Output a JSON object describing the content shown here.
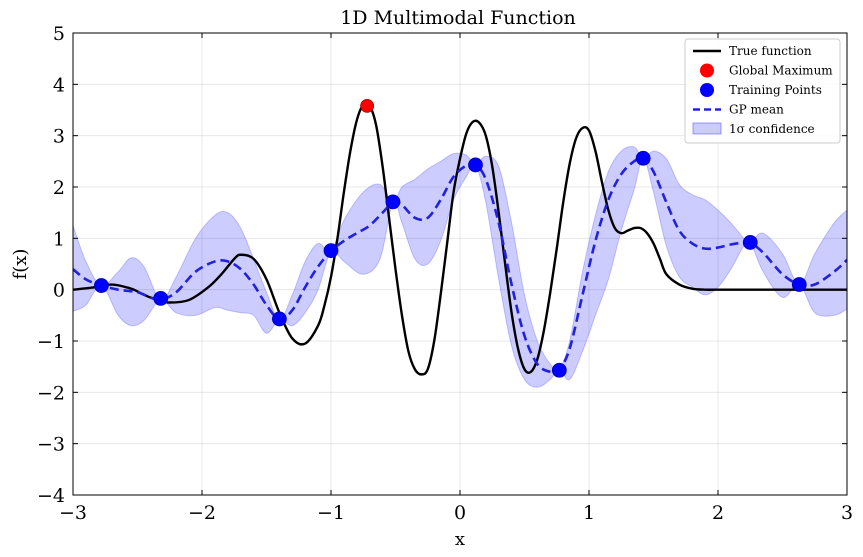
{
  "chart_data": {
    "type": "line",
    "title": "1D Multimodal Function",
    "xlabel": "x",
    "ylabel": "f(x)",
    "xlim": [
      -3,
      3
    ],
    "ylim": [
      -4,
      5
    ],
    "xticks": [
      -3,
      -2,
      -1,
      0,
      1,
      2,
      3
    ],
    "xtick_labels": [
      "−3",
      "−2",
      "−1",
      "0",
      "1",
      "2",
      "3"
    ],
    "yticks": [
      -4,
      -3,
      -2,
      -1,
      0,
      1,
      2,
      3,
      4,
      5
    ],
    "ytick_labels": [
      "−4",
      "−3",
      "−2",
      "−1",
      "0",
      "1",
      "2",
      "3",
      "4",
      "5"
    ],
    "grid": true,
    "legend_position": "top-right",
    "legend": [
      {
        "label": "True function",
        "kind": "line",
        "color": "#000000"
      },
      {
        "label": "Global Maximum",
        "kind": "marker",
        "color": "#ff0000"
      },
      {
        "label": "Training Points",
        "kind": "marker",
        "color": "#0000ff"
      },
      {
        "label": "GP mean",
        "kind": "dashed",
        "color": "#2222dd"
      },
      {
        "label": "1σ confidence",
        "kind": "patch",
        "color": "#c8c8f8"
      }
    ],
    "true_function": {
      "x": [
        -3.0,
        -2.85,
        -2.7,
        -2.55,
        -2.45,
        -2.35,
        -2.25,
        -2.1,
        -1.95,
        -1.85,
        -1.75,
        -1.7,
        -1.6,
        -1.5,
        -1.4,
        -1.3,
        -1.2,
        -1.1,
        -1.05,
        -1.0,
        -0.95,
        -0.9,
        -0.85,
        -0.8,
        -0.75,
        -0.7,
        -0.65,
        -0.6,
        -0.55,
        -0.5,
        -0.45,
        -0.4,
        -0.35,
        -0.3,
        -0.25,
        -0.2,
        -0.15,
        -0.1,
        -0.05,
        0.0,
        0.05,
        0.1,
        0.15,
        0.2,
        0.25,
        0.3,
        0.35,
        0.4,
        0.45,
        0.5,
        0.55,
        0.6,
        0.65,
        0.7,
        0.75,
        0.8,
        0.85,
        0.9,
        0.95,
        1.0,
        1.05,
        1.1,
        1.15,
        1.2,
        1.25,
        1.3,
        1.35,
        1.4,
        1.45,
        1.5,
        1.55,
        1.6,
        1.7,
        1.8,
        1.9,
        2.0,
        2.1,
        2.2,
        2.3,
        2.4,
        2.5,
        2.6,
        2.7,
        2.8,
        2.9,
        3.0
      ],
      "y": [
        0.0,
        0.04,
        0.1,
        0.02,
        -0.1,
        -0.2,
        -0.25,
        -0.2,
        0.05,
        0.3,
        0.6,
        0.68,
        0.6,
        0.2,
        -0.45,
        -0.95,
        -1.05,
        -0.7,
        -0.3,
        0.25,
        1.0,
        1.9,
        2.7,
        3.3,
        3.6,
        3.58,
        3.2,
        2.4,
        1.4,
        0.4,
        -0.5,
        -1.2,
        -1.55,
        -1.65,
        -1.55,
        -1.0,
        -0.1,
        0.9,
        1.9,
        2.55,
        3.05,
        3.27,
        3.25,
        3.0,
        2.4,
        1.5,
        0.5,
        -0.45,
        -1.15,
        -1.55,
        -1.6,
        -1.35,
        -0.8,
        -0.05,
        0.8,
        1.7,
        2.45,
        2.95,
        3.15,
        3.1,
        2.7,
        2.1,
        1.55,
        1.2,
        1.1,
        1.15,
        1.2,
        1.2,
        1.1,
        0.9,
        0.6,
        0.3,
        0.1,
        0.02,
        0.0,
        0.0,
        0.0,
        0.0,
        0.0,
        0.0,
        0.0,
        0.0,
        0.0,
        0.0,
        0.0,
        0.0
      ]
    },
    "gp_mean": {
      "x": [
        -3.0,
        -2.9,
        -2.78,
        -2.65,
        -2.5,
        -2.4,
        -2.32,
        -2.2,
        -2.05,
        -1.9,
        -1.8,
        -1.7,
        -1.6,
        -1.5,
        -1.4,
        -1.3,
        -1.2,
        -1.1,
        -1.0,
        -0.9,
        -0.8,
        -0.7,
        -0.6,
        -0.52,
        -0.45,
        -0.35,
        -0.25,
        -0.15,
        -0.05,
        0.05,
        0.12,
        0.2,
        0.3,
        0.4,
        0.5,
        0.6,
        0.7,
        0.77,
        0.85,
        0.95,
        1.05,
        1.15,
        1.25,
        1.35,
        1.42,
        1.5,
        1.6,
        1.7,
        1.8,
        1.9,
        2.0,
        2.1,
        2.2,
        2.25,
        2.35,
        2.5,
        2.63,
        2.75,
        2.9,
        3.0
      ],
      "y": [
        0.4,
        0.2,
        0.08,
        0.0,
        -0.05,
        -0.15,
        -0.2,
        -0.05,
        0.35,
        0.55,
        0.55,
        0.4,
        0.1,
        -0.3,
        -0.58,
        -0.4,
        0.05,
        0.45,
        0.75,
        0.95,
        1.1,
        1.25,
        1.5,
        1.7,
        1.65,
        1.4,
        1.4,
        1.75,
        2.2,
        2.42,
        2.43,
        2.15,
        1.3,
        0.1,
        -0.9,
        -1.45,
        -1.6,
        -1.55,
        -1.15,
        -0.1,
        0.95,
        1.75,
        2.25,
        2.5,
        2.56,
        2.3,
        1.7,
        1.15,
        0.9,
        0.8,
        0.82,
        0.88,
        0.92,
        0.92,
        0.72,
        0.3,
        0.1,
        0.1,
        0.35,
        0.58
      ]
    },
    "confidence_upper": {
      "x": [
        -3.0,
        -2.9,
        -2.78,
        -2.65,
        -2.55,
        -2.45,
        -2.32,
        -2.2,
        -2.05,
        -1.9,
        -1.8,
        -1.7,
        -1.6,
        -1.5,
        -1.4,
        -1.3,
        -1.2,
        -1.1,
        -1.0,
        -0.9,
        -0.75,
        -0.62,
        -0.52,
        -0.45,
        -0.35,
        -0.25,
        -0.15,
        -0.05,
        0.05,
        0.12,
        0.2,
        0.3,
        0.4,
        0.5,
        0.6,
        0.7,
        0.77,
        0.85,
        0.95,
        1.05,
        1.15,
        1.25,
        1.35,
        1.42,
        1.5,
        1.6,
        1.7,
        1.8,
        1.9,
        2.0,
        2.1,
        2.2,
        2.25,
        2.35,
        2.5,
        2.63,
        2.75,
        2.9,
        3.0
      ],
      "y": [
        1.25,
        0.55,
        0.08,
        0.35,
        0.62,
        0.45,
        -0.2,
        0.25,
        1.0,
        1.45,
        1.5,
        1.2,
        0.6,
        -0.05,
        -0.58,
        -0.1,
        0.55,
        0.9,
        0.75,
        1.35,
        1.9,
        2.05,
        1.7,
        2.0,
        2.15,
        2.35,
        2.5,
        2.65,
        2.62,
        2.43,
        2.6,
        2.4,
        1.3,
        -0.1,
        -1.0,
        -1.45,
        -1.55,
        -1.0,
        0.35,
        1.45,
        2.3,
        2.7,
        2.78,
        2.56,
        2.7,
        2.55,
        2.05,
        1.85,
        1.75,
        1.55,
        1.3,
        1.0,
        0.92,
        1.1,
        0.7,
        0.1,
        0.7,
        1.3,
        1.55
      ]
    },
    "confidence_lower": {
      "x": [
        -3.0,
        -2.9,
        -2.78,
        -2.65,
        -2.55,
        -2.45,
        -2.32,
        -2.2,
        -2.05,
        -1.9,
        -1.8,
        -1.7,
        -1.6,
        -1.5,
        -1.4,
        -1.3,
        -1.2,
        -1.1,
        -1.0,
        -0.9,
        -0.75,
        -0.62,
        -0.52,
        -0.45,
        -0.35,
        -0.25,
        -0.15,
        -0.05,
        0.05,
        0.12,
        0.2,
        0.3,
        0.4,
        0.5,
        0.6,
        0.7,
        0.77,
        0.85,
        0.95,
        1.05,
        1.15,
        1.25,
        1.35,
        1.42,
        1.5,
        1.6,
        1.7,
        1.8,
        1.9,
        2.0,
        2.1,
        2.2,
        2.25,
        2.35,
        2.5,
        2.63,
        2.75,
        2.9,
        3.0
      ],
      "y": [
        -0.42,
        -0.3,
        0.08,
        -0.5,
        -0.7,
        -0.6,
        -0.2,
        -0.45,
        -0.5,
        -0.35,
        -0.4,
        -0.45,
        -0.5,
        -0.85,
        -0.58,
        -0.7,
        -0.45,
        0.0,
        0.75,
        0.55,
        0.3,
        0.6,
        1.7,
        1.3,
        0.6,
        0.5,
        0.95,
        1.75,
        2.2,
        2.43,
        1.7,
        0.2,
        -1.1,
        -1.75,
        -1.9,
        -1.75,
        -1.55,
        -1.75,
        -1.2,
        -0.5,
        0.2,
        1.15,
        1.95,
        2.56,
        1.9,
        0.85,
        0.25,
        0.05,
        -0.1,
        0.05,
        0.4,
        0.85,
        0.92,
        0.35,
        -0.15,
        0.1,
        -0.45,
        -0.5,
        -0.38
      ]
    },
    "training_points": {
      "x": [
        -2.78,
        -2.32,
        -1.4,
        -1.0,
        -0.52,
        0.12,
        0.77,
        1.42,
        2.25,
        2.63
      ],
      "y": [
        0.08,
        -0.17,
        -0.57,
        0.76,
        1.71,
        2.43,
        -1.57,
        2.56,
        0.92,
        0.1
      ]
    },
    "global_maximum": {
      "x": -0.72,
      "y": 3.58
    }
  }
}
